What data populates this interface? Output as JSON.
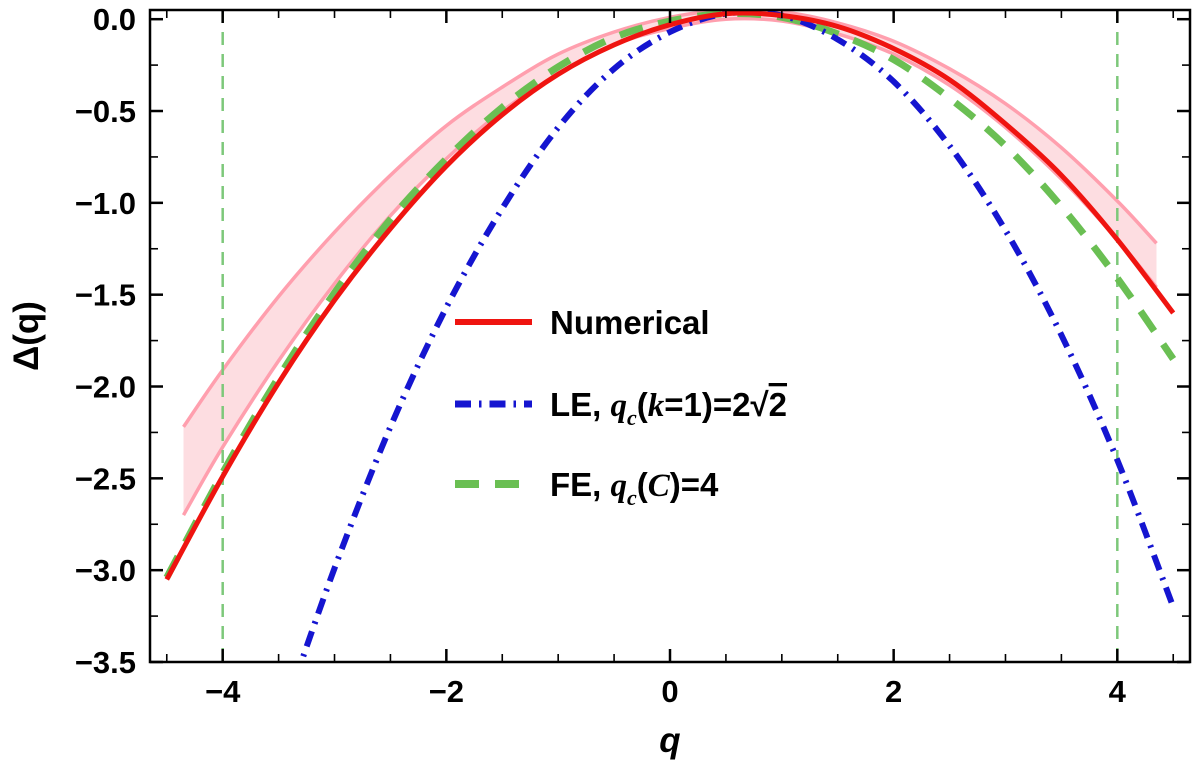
{
  "figure": {
    "background": "#ffffff"
  },
  "chart_data": {
    "type": "line",
    "title": "",
    "xlabel": "q",
    "ylabel": "Δ(q)",
    "xlim": [
      -4.65,
      4.65
    ],
    "ylim": [
      -3.5,
      0.05
    ],
    "grid": false,
    "legend_position": "center",
    "frame_color": "#000000",
    "x_ticks": [
      {
        "v": -4,
        "label": "−4"
      },
      {
        "v": -2,
        "label": "−2"
      },
      {
        "v": 0,
        "label": "0"
      },
      {
        "v": 2,
        "label": "2"
      },
      {
        "v": 4,
        "label": "4"
      }
    ],
    "y_ticks": [
      {
        "v": 0,
        "label": "0.0"
      },
      {
        "v": -0.5,
        "label": "−0.5"
      },
      {
        "v": -1,
        "label": "−1.0"
      },
      {
        "v": -1.5,
        "label": "−1.5"
      },
      {
        "v": -2,
        "label": "−2.0"
      },
      {
        "v": -2.5,
        "label": "−2.5"
      },
      {
        "v": -3,
        "label": "−3.0"
      },
      {
        "v": -3.5,
        "label": "−3.5"
      }
    ],
    "x_minor_step": 0.5,
    "y_minor_step": 0.25,
    "critical_lines": {
      "x_values": [
        -4,
        4
      ],
      "color": "#7dc87a",
      "dash": [
        13,
        9
      ],
      "width": 2.5
    },
    "band": {
      "name": "numerical-uncertainty-band",
      "fill": "#fcd1d7",
      "fill_opacity": 0.75,
      "edge_color": "#ff9fae",
      "edge_width": 3.5,
      "x": [
        -4.35,
        -4,
        -3.5,
        -3,
        -2.5,
        -2,
        -1.5,
        -1,
        -0.5,
        0,
        0.5,
        1,
        1.5,
        2,
        2.5,
        3,
        3.5,
        4,
        4.35
      ],
      "upper": [
        -2.22,
        -1.91,
        -1.51,
        -1.16,
        -0.85,
        -0.58,
        -0.37,
        -0.19,
        -0.07,
        0.01,
        0.05,
        0.04,
        -0.02,
        -0.12,
        -0.27,
        -0.46,
        -0.7,
        -0.99,
        -1.22
      ],
      "lower": [
        -2.7,
        -2.33,
        -1.86,
        -1.44,
        -1.07,
        -0.76,
        -0.5,
        -0.3,
        -0.14,
        -0.05,
        0.0,
        -0.01,
        -0.08,
        -0.19,
        -0.36,
        -0.59,
        -0.87,
        -1.2,
        -1.46
      ]
    },
    "series": [
      {
        "id": "numerical",
        "color": "#ef1410",
        "style": "solid",
        "width": 5,
        "x": [
          -4.5,
          -4,
          -3.5,
          -3,
          -2.5,
          -2,
          -1.5,
          -1,
          -0.5,
          0,
          0.5,
          1,
          1.5,
          2,
          2.5,
          3,
          3.5,
          4,
          4.5
        ],
        "y": [
          -3.05,
          -2.49,
          -1.98,
          -1.53,
          -1.14,
          -0.8,
          -0.52,
          -0.3,
          -0.14,
          -0.03,
          0.03,
          0.02,
          -0.04,
          -0.16,
          -0.33,
          -0.57,
          -0.85,
          -1.2,
          -1.6
        ]
      },
      {
        "id": "le",
        "color": "#1515d0",
        "style": "dashdot",
        "width": 6,
        "x": [
          -3.45,
          -3,
          -2.5,
          -2,
          -1.5,
          -1,
          -0.5,
          0,
          0.5,
          1,
          1.5,
          2,
          2.5,
          3,
          3.5,
          4,
          4.5
        ],
        "y": [
          -3.77,
          -2.99,
          -2.22,
          -1.57,
          -1.03,
          -0.59,
          -0.27,
          -0.07,
          0.03,
          0.02,
          -0.11,
          -0.34,
          -0.69,
          -1.15,
          -1.72,
          -2.4,
          -3.2
        ]
      },
      {
        "id": "fe",
        "color": "#6abf53",
        "style": "dashed",
        "width": 7,
        "x": [
          -4.5,
          -4,
          -3.5,
          -3,
          -2.5,
          -2,
          -1.5,
          -1,
          -0.5,
          0,
          0.5,
          1,
          1.5,
          2,
          2.5,
          3,
          3.5,
          4,
          4.5
        ],
        "y": [
          -3.04,
          -2.47,
          -1.95,
          -1.49,
          -1.09,
          -0.76,
          -0.48,
          -0.26,
          -0.1,
          -0.01,
          0.03,
          0.01,
          -0.08,
          -0.22,
          -0.43,
          -0.69,
          -1.02,
          -1.41,
          -1.85
        ]
      }
    ],
    "legend": {
      "items": [
        {
          "series": "numerical",
          "parts": [
            {
              "text": "Numerical"
            }
          ]
        },
        {
          "series": "le",
          "parts": [
            {
              "text": "LE, "
            },
            {
              "text": "q",
              "italic": true
            },
            {
              "text": "c",
              "italic": true,
              "sub": true
            },
            {
              "text": "("
            },
            {
              "text": "k",
              "italic": true
            },
            {
              "text": "=1)=2"
            },
            {
              "text": "√"
            },
            {
              "text": "2",
              "overline": true
            }
          ]
        },
        {
          "series": "fe",
          "parts": [
            {
              "text": "FE, "
            },
            {
              "text": "q",
              "italic": true
            },
            {
              "text": "c",
              "italic": true,
              "sub": true
            },
            {
              "text": "("
            },
            {
              "text": "C",
              "italic": true
            },
            {
              "text": ")=4"
            }
          ]
        }
      ]
    }
  }
}
